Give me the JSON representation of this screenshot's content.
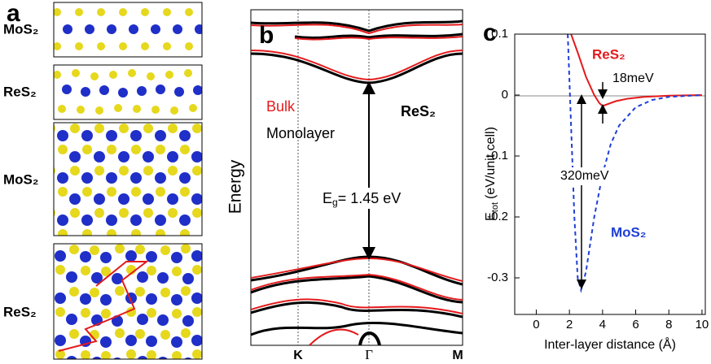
{
  "panel_a": {
    "label": "a",
    "rows": [
      "MoS₂",
      "ReS₂",
      "MoS₂",
      "ReS₂"
    ]
  },
  "panel_b": {
    "label": "b",
    "legend": [
      "Bulk",
      "Monolayer"
    ],
    "material": "ReS₂",
    "ylabel": "Energy",
    "gap": {
      "symbol": "E",
      "subscript": "g",
      "text": "= 1.45 eV"
    },
    "kpoints": [
      "K",
      "Γ",
      "M"
    ]
  },
  "chart_data": {
    "type": "line",
    "label": "c",
    "xlabel": "Inter-layer distance (Å)",
    "ylabel": {
      "symbol": "E",
      "subscript": "tot",
      "text": "(eV/unit cell)"
    },
    "xlim": [
      -1.3,
      10.2
    ],
    "ylim": [
      -0.36,
      0.1
    ],
    "xticks": [
      0,
      2,
      4,
      6,
      8,
      10
    ],
    "yticks": [
      -0.3,
      -0.2,
      -0.1,
      0,
      0.1
    ],
    "series": [
      {
        "name": "ReS₂",
        "color": "#e41a1c",
        "style": "solid",
        "x": [
          2.1,
          2.5,
          3.0,
          3.5,
          3.8,
          4.0,
          4.3,
          4.8,
          5.5,
          6.5,
          8,
          10
        ],
        "values": [
          0.1,
          0.07,
          0.03,
          0.0,
          -0.013,
          -0.018,
          -0.015,
          -0.01,
          -0.006,
          -0.003,
          -0.001,
          0
        ]
      },
      {
        "name": "MoS₂",
        "color": "#1f3fd6",
        "style": "dashed",
        "x": [
          1.9,
          2.1,
          2.3,
          2.5,
          2.7,
          3.0,
          3.5,
          4.0,
          4.5,
          5.0,
          6.0,
          7.0,
          8.0,
          10.0
        ],
        "values": [
          0.1,
          -0.05,
          -0.2,
          -0.3,
          -0.32,
          -0.29,
          -0.2,
          -0.13,
          -0.08,
          -0.05,
          -0.02,
          -0.008,
          -0.003,
          0
        ]
      }
    ],
    "annotations": [
      "18meV",
      "320meV"
    ]
  }
}
